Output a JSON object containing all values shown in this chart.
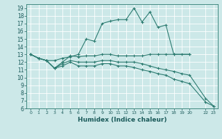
{
  "xlabel": "Humidex (Indice chaleur)",
  "bg_color": "#cce8e8",
  "grid_color": "#ffffff",
  "line_color": "#2a7a6f",
  "xlim": [
    -0.5,
    23.5
  ],
  "ylim": [
    6,
    19.5
  ],
  "yticks": [
    6,
    7,
    8,
    9,
    10,
    11,
    12,
    13,
    14,
    15,
    16,
    17,
    18,
    19
  ],
  "xtick_vals": [
    0,
    1,
    2,
    3,
    4,
    5,
    6,
    7,
    8,
    9,
    10,
    11,
    12,
    13,
    14,
    15,
    16,
    17,
    18,
    19,
    20,
    22,
    23
  ],
  "lines": [
    {
      "x": [
        0,
        1,
        2,
        3,
        4,
        5,
        6,
        7,
        8,
        9,
        10,
        11,
        12,
        13,
        14,
        15,
        16,
        17,
        18,
        20
      ],
      "y": [
        13,
        12.5,
        12.2,
        12.2,
        12.5,
        12.7,
        13.0,
        15.0,
        14.7,
        17.0,
        17.3,
        17.5,
        17.5,
        19.0,
        17.2,
        18.5,
        16.5,
        16.8,
        13.0,
        13.0
      ]
    },
    {
      "x": [
        0,
        1,
        2,
        3,
        4,
        5,
        6,
        7,
        8,
        9,
        10,
        11,
        12,
        13,
        14,
        15,
        16,
        17,
        18,
        19,
        20
      ],
      "y": [
        13,
        12.5,
        12.2,
        11.2,
        12.0,
        12.8,
        12.7,
        12.8,
        12.8,
        13.0,
        13.0,
        12.8,
        12.8,
        12.8,
        12.8,
        13.0,
        13.0,
        13.0,
        13.0,
        13.0,
        13.0
      ]
    },
    {
      "x": [
        0,
        1,
        2,
        3,
        4,
        5,
        6,
        7,
        8,
        9,
        10,
        11,
        12,
        13,
        14,
        15,
        16,
        17,
        18,
        19,
        20,
        22,
        23
      ],
      "y": [
        13,
        12.5,
        12.2,
        11.2,
        11.8,
        12.2,
        12.0,
        12.0,
        12.0,
        12.2,
        12.2,
        12.0,
        12.0,
        12.0,
        11.8,
        11.5,
        11.2,
        11.0,
        10.8,
        10.5,
        10.3,
        7.3,
        6.3
      ]
    },
    {
      "x": [
        0,
        1,
        2,
        3,
        4,
        5,
        6,
        7,
        8,
        9,
        10,
        11,
        12,
        13,
        14,
        15,
        16,
        17,
        18,
        19,
        20,
        22,
        23
      ],
      "y": [
        13,
        12.5,
        12.2,
        11.2,
        11.5,
        12.0,
        11.5,
        11.5,
        11.5,
        11.8,
        11.8,
        11.5,
        11.5,
        11.3,
        11.0,
        10.8,
        10.5,
        10.3,
        9.8,
        9.5,
        9.2,
        6.8,
        6.3
      ]
    }
  ]
}
